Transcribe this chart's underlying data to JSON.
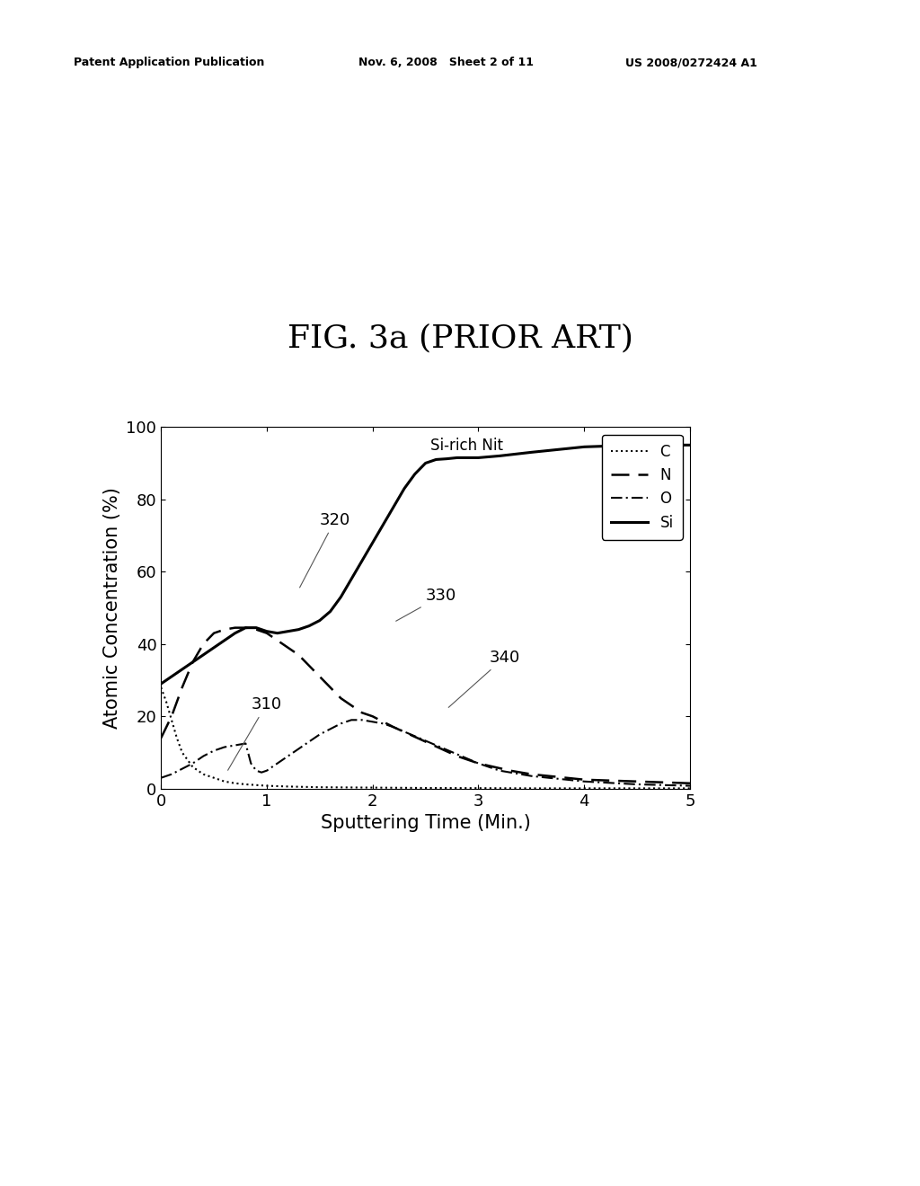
{
  "title": "FIG. 3a (PRIOR ART)",
  "title_fontsize": 26,
  "xlabel": "Sputtering Time (Min.)",
  "ylabel": "Atomic Concentration (%)",
  "xlabel_fontsize": 15,
  "ylabel_fontsize": 15,
  "xlim": [
    0,
    5
  ],
  "ylim": [
    0,
    100
  ],
  "xticks": [
    0,
    1,
    2,
    3,
    4,
    5
  ],
  "yticks": [
    0,
    20,
    40,
    60,
    80,
    100
  ],
  "annotation_label": "Si-rich Nit",
  "background_color": "#ffffff",
  "header_left": "Patent Application Publication",
  "header_mid": "Nov. 6, 2008   Sheet 2 of 11",
  "header_right": "US 2008/0272424 A1",
  "t_C": [
    0,
    0.05,
    0.1,
    0.15,
    0.2,
    0.3,
    0.4,
    0.5,
    0.6,
    0.7,
    0.8,
    0.9,
    1.0,
    1.1,
    1.2,
    1.5,
    2.0,
    2.5,
    3.0,
    3.5,
    4.0,
    4.5,
    5.0
  ],
  "v_C": [
    28,
    24,
    19,
    14,
    10,
    6,
    4,
    3,
    2,
    1.5,
    1.2,
    1.0,
    0.8,
    0.7,
    0.6,
    0.4,
    0.3,
    0.2,
    0.15,
    0.1,
    0.1,
    0.1,
    0.1
  ],
  "t_N": [
    0,
    0.1,
    0.2,
    0.3,
    0.4,
    0.5,
    0.6,
    0.7,
    0.8,
    0.9,
    1.0,
    1.1,
    1.2,
    1.3,
    1.4,
    1.5,
    1.6,
    1.7,
    1.8,
    1.9,
    2.0,
    2.2,
    2.5,
    2.8,
    3.0,
    3.3,
    3.5,
    4.0,
    4.5,
    5.0
  ],
  "v_N": [
    14,
    20,
    28,
    35,
    40,
    43,
    44,
    44.5,
    44.5,
    44,
    43,
    41,
    39,
    37,
    34,
    31,
    28,
    25,
    23,
    21,
    20,
    17,
    13,
    9,
    7,
    5,
    4,
    2.5,
    2.0,
    1.5
  ],
  "t_O": [
    0,
    0.1,
    0.2,
    0.3,
    0.4,
    0.5,
    0.6,
    0.7,
    0.8,
    0.85,
    0.9,
    0.95,
    1.0,
    1.1,
    1.2,
    1.3,
    1.4,
    1.5,
    1.6,
    1.7,
    1.8,
    1.9,
    2.0,
    2.1,
    2.2,
    2.4,
    2.6,
    2.8,
    3.0,
    3.2,
    3.5,
    4.0,
    4.5,
    5.0
  ],
  "v_O": [
    3,
    4,
    5.5,
    7,
    9,
    10.5,
    11.5,
    12,
    12.5,
    7,
    5,
    4.5,
    5,
    7,
    9,
    11,
    13,
    15,
    16.5,
    18,
    19,
    19,
    18.5,
    18,
    17,
    14.5,
    12,
    9.5,
    7,
    5,
    3.5,
    2,
    1.2,
    0.8
  ],
  "t_Si": [
    0,
    0.05,
    0.1,
    0.15,
    0.2,
    0.25,
    0.3,
    0.35,
    0.4,
    0.5,
    0.6,
    0.7,
    0.8,
    0.9,
    1.0,
    1.1,
    1.2,
    1.3,
    1.4,
    1.5,
    1.6,
    1.7,
    1.8,
    1.9,
    2.0,
    2.1,
    2.2,
    2.3,
    2.4,
    2.5,
    2.6,
    2.7,
    2.8,
    2.9,
    3.0,
    3.2,
    3.5,
    4.0,
    4.5,
    5.0
  ],
  "v_Si": [
    29,
    30,
    31,
    32,
    33,
    34,
    35,
    36,
    37,
    39,
    41,
    43,
    44.5,
    44.5,
    43.5,
    43,
    43.5,
    44,
    45,
    46.5,
    49,
    53,
    58,
    63,
    68,
    73,
    78,
    83,
    87,
    90,
    91,
    91.2,
    91.5,
    91.5,
    91.5,
    92,
    93,
    94.5,
    95,
    95
  ]
}
